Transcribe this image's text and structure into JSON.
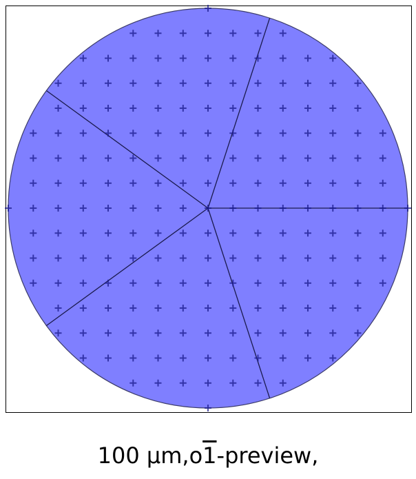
{
  "caption": {
    "prefix": "100 µm,o",
    "overbar_digit": "1",
    "suffix": "-preview,"
  },
  "figure": {
    "type": "wafer-map",
    "disk_fill": "#7f7fff",
    "disk_edge": "#3c3c6a",
    "marker_color": "#1a1a8c",
    "frame_color": "#000000",
    "sector_boundary_angles_deg": [
      0,
      72,
      144,
      216,
      288
    ],
    "marker_grid_spacing_fraction_of_radius": 0.125
  }
}
